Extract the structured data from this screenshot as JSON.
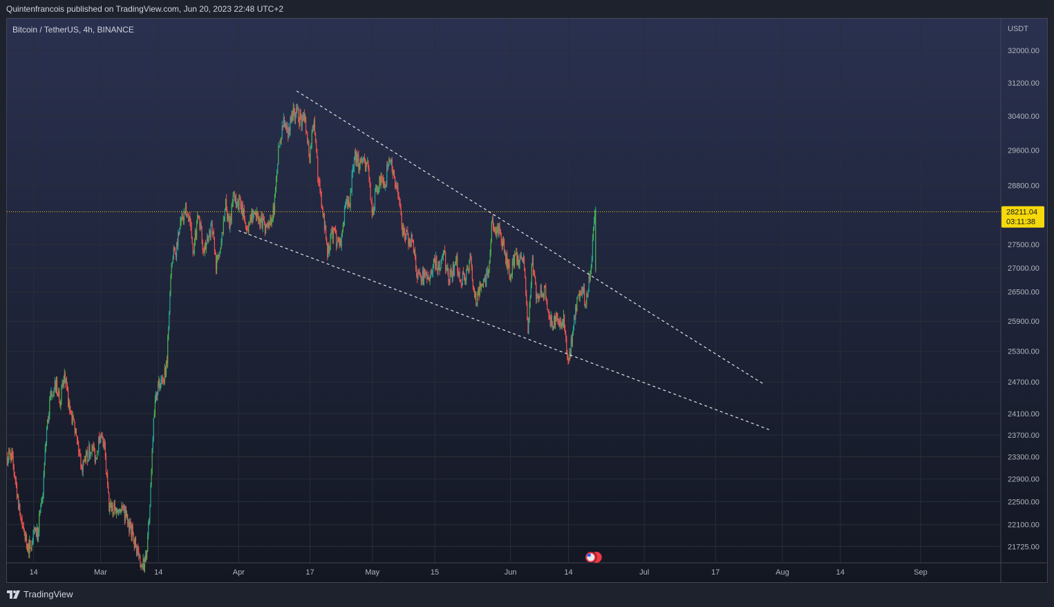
{
  "header": {
    "published_by": "Quintenfrancois published on TradingView.com, Jun 20, 2023 22:48 UTC+2"
  },
  "chart": {
    "symbol_title": "Bitcoin / TetherUS, 4h, BINANCE",
    "currency": "USDT",
    "last_price": "28211.04",
    "countdown": "03:11:38"
  },
  "footer": {
    "brand": "TradingView"
  },
  "colors": {
    "background_top": "#2a3150",
    "background_bottom": "#131722",
    "up_candle": "#26a69a",
    "up_candle_bright": "#4caf50",
    "down_candle": "#ef5350",
    "wick_up": "#26a69a",
    "trendline": "#e6e6e6",
    "last_price_line": "#f0c419",
    "last_price_label_bg": "#f5d90a",
    "axis_text": "#b2b5be",
    "grid": "#2a2e39"
  },
  "chart_data": {
    "type": "candlestick",
    "title": "Bitcoin / TetherUS, 4h, BINANCE",
    "interval": "4h",
    "y_axis": {
      "unit": "USDT",
      "ticks": [
        32000,
        31200,
        30400,
        29600,
        28800,
        27500,
        27000,
        26500,
        25900,
        25300,
        24700,
        24100,
        23700,
        23300,
        22900,
        22500,
        22100,
        21725
      ],
      "tick_labels": [
        "32000.00",
        "31200.00",
        "30400.00",
        "29600.00",
        "28800.00",
        "27500.00",
        "27000.00",
        "26500.00",
        "25900.00",
        "25300.00",
        "24700.00",
        "24100.00",
        "23700.00",
        "23300.00",
        "22900.00",
        "22500.00",
        "22100.00",
        "21725.00"
      ],
      "range": [
        21450,
        32800
      ],
      "scale": "log"
    },
    "x_axis": {
      "range": [
        "2023-02-08",
        "2023-09-19"
      ],
      "ticks": [
        {
          "label": "14",
          "date": "2023-02-14"
        },
        {
          "label": "Mar",
          "date": "2023-03-01"
        },
        {
          "label": "14",
          "date": "2023-03-14"
        },
        {
          "label": "Apr",
          "date": "2023-04-01"
        },
        {
          "label": "17",
          "date": "2023-04-17"
        },
        {
          "label": "May",
          "date": "2023-05-01"
        },
        {
          "label": "15",
          "date": "2023-05-15"
        },
        {
          "label": "Jun",
          "date": "2023-06-01"
        },
        {
          "label": "14",
          "date": "2023-06-14"
        },
        {
          "label": "Jul",
          "date": "2023-07-01"
        },
        {
          "label": "17",
          "date": "2023-07-17"
        },
        {
          "label": "Aug",
          "date": "2023-08-01"
        },
        {
          "label": "14",
          "date": "2023-08-14"
        },
        {
          "label": "Sep",
          "date": "2023-09-01"
        }
      ]
    },
    "grid": true,
    "price_path": [
      [
        "2023-02-08",
        23300
      ],
      [
        "2023-02-09",
        23350
      ],
      [
        "2023-02-10",
        22900
      ],
      [
        "2023-02-11",
        22300
      ],
      [
        "2023-02-12",
        21900
      ],
      [
        "2023-02-13",
        21700
      ],
      [
        "2023-02-14",
        21900
      ],
      [
        "2023-02-15",
        22000
      ],
      [
        "2023-02-16",
        22500
      ],
      [
        "2023-02-17",
        23800
      ],
      [
        "2023-02-18",
        24500
      ],
      [
        "2023-02-19",
        24700
      ],
      [
        "2023-02-20",
        24400
      ],
      [
        "2023-02-21",
        24800
      ],
      [
        "2023-02-22",
        24200
      ],
      [
        "2023-02-23",
        23900
      ],
      [
        "2023-02-24",
        23500
      ],
      [
        "2023-02-25",
        23100
      ],
      [
        "2023-02-26",
        23300
      ],
      [
        "2023-02-27",
        23500
      ],
      [
        "2023-02-28",
        23300
      ],
      [
        "2023-03-01",
        23700
      ],
      [
        "2023-03-02",
        23400
      ],
      [
        "2023-03-03",
        22400
      ],
      [
        "2023-03-04",
        22350
      ],
      [
        "2023-03-05",
        22400
      ],
      [
        "2023-03-06",
        22350
      ],
      [
        "2023-03-07",
        22200
      ],
      [
        "2023-03-08",
        22000
      ],
      [
        "2023-03-09",
        21750
      ],
      [
        "2023-03-10",
        21500
      ],
      [
        "2023-03-11",
        21400
      ],
      [
        "2023-03-12",
        22100
      ],
      [
        "2023-03-13",
        24100
      ],
      [
        "2023-03-14",
        24700
      ],
      [
        "2023-03-15",
        24600
      ],
      [
        "2023-03-16",
        25200
      ],
      [
        "2023-03-17",
        27200
      ],
      [
        "2023-03-18",
        27400
      ],
      [
        "2023-03-19",
        28000
      ],
      [
        "2023-03-20",
        28200
      ],
      [
        "2023-03-21",
        28100
      ],
      [
        "2023-03-22",
        27300
      ],
      [
        "2023-03-23",
        28300
      ],
      [
        "2023-03-24",
        27500
      ],
      [
        "2023-03-25",
        27500
      ],
      [
        "2023-03-26",
        27900
      ],
      [
        "2023-03-27",
        27100
      ],
      [
        "2023-03-28",
        27300
      ],
      [
        "2023-03-29",
        28400
      ],
      [
        "2023-03-30",
        28000
      ],
      [
        "2023-03-31",
        28500
      ],
      [
        "2023-04-01",
        28400
      ],
      [
        "2023-04-02",
        28200
      ],
      [
        "2023-04-03",
        27800
      ],
      [
        "2023-04-04",
        28200
      ],
      [
        "2023-04-05",
        28200
      ],
      [
        "2023-04-06",
        28000
      ],
      [
        "2023-04-07",
        27900
      ],
      [
        "2023-04-08",
        27950
      ],
      [
        "2023-04-09",
        28300
      ],
      [
        "2023-04-10",
        29600
      ],
      [
        "2023-04-11",
        30200
      ],
      [
        "2023-04-12",
        30000
      ],
      [
        "2023-04-13",
        30400
      ],
      [
        "2023-04-14",
        30500
      ],
      [
        "2023-04-15",
        30300
      ],
      [
        "2023-04-16",
        30300
      ],
      [
        "2023-04-17",
        29450
      ],
      [
        "2023-04-18",
        30400
      ],
      [
        "2023-04-19",
        28800
      ],
      [
        "2023-04-20",
        28250
      ],
      [
        "2023-04-21",
        27300
      ],
      [
        "2023-04-22",
        27800
      ],
      [
        "2023-04-23",
        27600
      ],
      [
        "2023-04-24",
        27500
      ],
      [
        "2023-04-25",
        28300
      ],
      [
        "2023-04-26",
        28400
      ],
      [
        "2023-04-27",
        29500
      ],
      [
        "2023-04-28",
        29300
      ],
      [
        "2023-04-29",
        29250
      ],
      [
        "2023-04-30",
        29300
      ],
      [
        "2023-05-01",
        28100
      ],
      [
        "2023-05-02",
        28700
      ],
      [
        "2023-05-03",
        29000
      ],
      [
        "2023-05-04",
        28900
      ],
      [
        "2023-05-05",
        29500
      ],
      [
        "2023-05-06",
        28900
      ],
      [
        "2023-05-07",
        28500
      ],
      [
        "2023-05-08",
        27700
      ],
      [
        "2023-05-09",
        27650
      ],
      [
        "2023-05-10",
        27600
      ],
      [
        "2023-05-11",
        26900
      ],
      [
        "2023-05-12",
        26800
      ],
      [
        "2023-05-13",
        26800
      ],
      [
        "2023-05-14",
        26900
      ],
      [
        "2023-05-15",
        27200
      ],
      [
        "2023-05-16",
        27000
      ],
      [
        "2023-05-17",
        27400
      ],
      [
        "2023-05-18",
        26800
      ],
      [
        "2023-05-19",
        26900
      ],
      [
        "2023-05-20",
        27100
      ],
      [
        "2023-05-21",
        26750
      ],
      [
        "2023-05-22",
        26850
      ],
      [
        "2023-05-23",
        27200
      ],
      [
        "2023-05-24",
        26300
      ],
      [
        "2023-05-25",
        26500
      ],
      [
        "2023-05-26",
        26700
      ],
      [
        "2023-05-27",
        26850
      ],
      [
        "2023-05-28",
        28050
      ],
      [
        "2023-05-29",
        27750
      ],
      [
        "2023-05-30",
        27700
      ],
      [
        "2023-05-31",
        27200
      ],
      [
        "2023-06-01",
        26800
      ],
      [
        "2023-06-02",
        27250
      ],
      [
        "2023-06-03",
        27100
      ],
      [
        "2023-06-04",
        27100
      ],
      [
        "2023-06-05",
        25750
      ],
      [
        "2023-06-06",
        27200
      ],
      [
        "2023-06-07",
        26350
      ],
      [
        "2023-06-08",
        26500
      ],
      [
        "2023-06-09",
        26500
      ],
      [
        "2023-06-10",
        25850
      ],
      [
        "2023-06-11",
        25950
      ],
      [
        "2023-06-12",
        25900
      ],
      [
        "2023-06-13",
        25900
      ],
      [
        "2023-06-14",
        25100
      ],
      [
        "2023-06-15",
        25600
      ],
      [
        "2023-06-16",
        26350
      ],
      [
        "2023-06-17",
        26500
      ],
      [
        "2023-06-18",
        26350
      ],
      [
        "2023-06-19",
        26900
      ],
      [
        "2023-06-20",
        28211
      ]
    ],
    "trendlines": [
      {
        "name": "upper",
        "from": [
          "2023-04-14",
          31000
        ],
        "to": [
          "2023-07-28",
          24650
        ]
      },
      {
        "name": "lower",
        "from": [
          "2023-04-01",
          27800
        ],
        "to": [
          "2023-07-29",
          23800
        ]
      }
    ],
    "last_price": 28211.04
  }
}
